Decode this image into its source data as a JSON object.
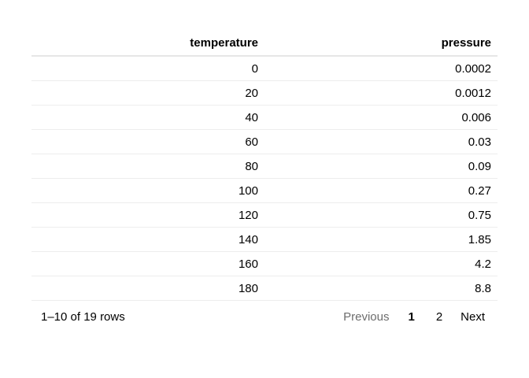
{
  "table": {
    "columns": [
      "temperature",
      "pressure"
    ],
    "rows": [
      [
        "0",
        "0.0002"
      ],
      [
        "20",
        "0.0012"
      ],
      [
        "40",
        "0.006"
      ],
      [
        "60",
        "0.03"
      ],
      [
        "80",
        "0.09"
      ],
      [
        "100",
        "0.27"
      ],
      [
        "120",
        "0.75"
      ],
      [
        "140",
        "1.85"
      ],
      [
        "160",
        "4.2"
      ],
      [
        "180",
        "8.8"
      ]
    ]
  },
  "pagination": {
    "info": "1–10 of 19 rows",
    "previous_label": "Previous",
    "pages": [
      "1",
      "2"
    ],
    "current_page": "1",
    "next_label": "Next"
  }
}
